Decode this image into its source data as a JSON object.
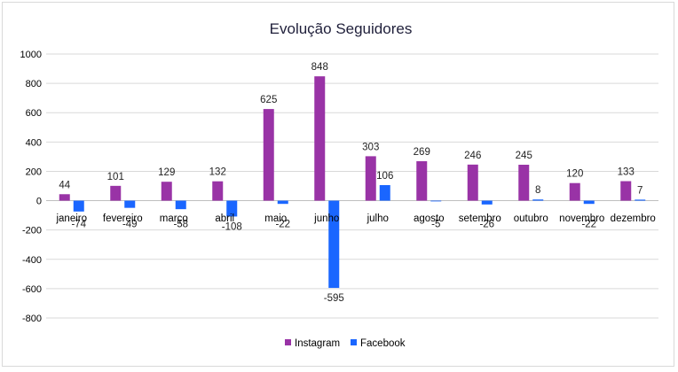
{
  "chart_data": {
    "type": "bar",
    "title": "Evolução Seguidores",
    "categories": [
      "janeiro",
      "fevereiro",
      "março",
      "abril",
      "maio",
      "junho",
      "julho",
      "agosto",
      "setembro",
      "outubro",
      "novembro",
      "dezembro"
    ],
    "series": [
      {
        "name": "Instagram",
        "color": "#9933a6",
        "values": [
          44,
          101,
          129,
          132,
          625,
          848,
          303,
          269,
          246,
          245,
          120,
          133
        ]
      },
      {
        "name": "Facebook",
        "color": "#1a66ff",
        "values": [
          -74,
          -49,
          -58,
          -108,
          -22,
          -595,
          106,
          -5,
          -26,
          8,
          -22,
          7
        ]
      }
    ],
    "yticks": [
      1000,
      800,
      600,
      400,
      200,
      0,
      -200,
      -400,
      -600,
      -800
    ],
    "ylim": [
      -800,
      1000
    ],
    "grid": true,
    "legend_position": "bottom"
  }
}
